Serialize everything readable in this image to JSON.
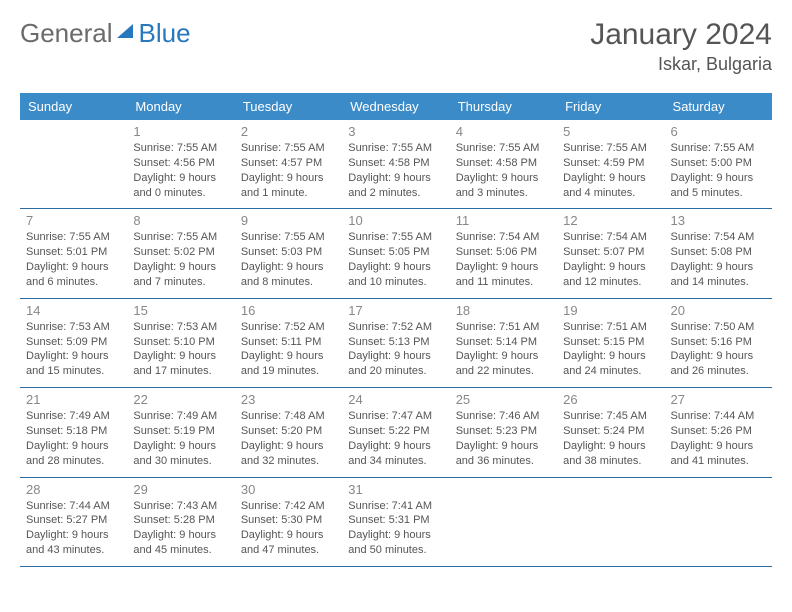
{
  "logo": {
    "text1": "General",
    "text2": "Blue"
  },
  "title": "January 2024",
  "location": "Iskar, Bulgaria",
  "colors": {
    "header_bg": "#3b8bc9",
    "header_text": "#ffffff",
    "border": "#2b6ca3",
    "daynum": "#888888",
    "body_text": "#555555",
    "logo_gray": "#6b6b6b",
    "logo_blue": "#2878bd"
  },
  "weekdays": [
    "Sunday",
    "Monday",
    "Tuesday",
    "Wednesday",
    "Thursday",
    "Friday",
    "Saturday"
  ],
  "weeks": [
    [
      null,
      {
        "n": "1",
        "sr": "7:55 AM",
        "ss": "4:56 PM",
        "dl": "9 hours and 0 minutes."
      },
      {
        "n": "2",
        "sr": "7:55 AM",
        "ss": "4:57 PM",
        "dl": "9 hours and 1 minute."
      },
      {
        "n": "3",
        "sr": "7:55 AM",
        "ss": "4:58 PM",
        "dl": "9 hours and 2 minutes."
      },
      {
        "n": "4",
        "sr": "7:55 AM",
        "ss": "4:58 PM",
        "dl": "9 hours and 3 minutes."
      },
      {
        "n": "5",
        "sr": "7:55 AM",
        "ss": "4:59 PM",
        "dl": "9 hours and 4 minutes."
      },
      {
        "n": "6",
        "sr": "7:55 AM",
        "ss": "5:00 PM",
        "dl": "9 hours and 5 minutes."
      }
    ],
    [
      {
        "n": "7",
        "sr": "7:55 AM",
        "ss": "5:01 PM",
        "dl": "9 hours and 6 minutes."
      },
      {
        "n": "8",
        "sr": "7:55 AM",
        "ss": "5:02 PM",
        "dl": "9 hours and 7 minutes."
      },
      {
        "n": "9",
        "sr": "7:55 AM",
        "ss": "5:03 PM",
        "dl": "9 hours and 8 minutes."
      },
      {
        "n": "10",
        "sr": "7:55 AM",
        "ss": "5:05 PM",
        "dl": "9 hours and 10 minutes."
      },
      {
        "n": "11",
        "sr": "7:54 AM",
        "ss": "5:06 PM",
        "dl": "9 hours and 11 minutes."
      },
      {
        "n": "12",
        "sr": "7:54 AM",
        "ss": "5:07 PM",
        "dl": "9 hours and 12 minutes."
      },
      {
        "n": "13",
        "sr": "7:54 AM",
        "ss": "5:08 PM",
        "dl": "9 hours and 14 minutes."
      }
    ],
    [
      {
        "n": "14",
        "sr": "7:53 AM",
        "ss": "5:09 PM",
        "dl": "9 hours and 15 minutes."
      },
      {
        "n": "15",
        "sr": "7:53 AM",
        "ss": "5:10 PM",
        "dl": "9 hours and 17 minutes."
      },
      {
        "n": "16",
        "sr": "7:52 AM",
        "ss": "5:11 PM",
        "dl": "9 hours and 19 minutes."
      },
      {
        "n": "17",
        "sr": "7:52 AM",
        "ss": "5:13 PM",
        "dl": "9 hours and 20 minutes."
      },
      {
        "n": "18",
        "sr": "7:51 AM",
        "ss": "5:14 PM",
        "dl": "9 hours and 22 minutes."
      },
      {
        "n": "19",
        "sr": "7:51 AM",
        "ss": "5:15 PM",
        "dl": "9 hours and 24 minutes."
      },
      {
        "n": "20",
        "sr": "7:50 AM",
        "ss": "5:16 PM",
        "dl": "9 hours and 26 minutes."
      }
    ],
    [
      {
        "n": "21",
        "sr": "7:49 AM",
        "ss": "5:18 PM",
        "dl": "9 hours and 28 minutes."
      },
      {
        "n": "22",
        "sr": "7:49 AM",
        "ss": "5:19 PM",
        "dl": "9 hours and 30 minutes."
      },
      {
        "n": "23",
        "sr": "7:48 AM",
        "ss": "5:20 PM",
        "dl": "9 hours and 32 minutes."
      },
      {
        "n": "24",
        "sr": "7:47 AM",
        "ss": "5:22 PM",
        "dl": "9 hours and 34 minutes."
      },
      {
        "n": "25",
        "sr": "7:46 AM",
        "ss": "5:23 PM",
        "dl": "9 hours and 36 minutes."
      },
      {
        "n": "26",
        "sr": "7:45 AM",
        "ss": "5:24 PM",
        "dl": "9 hours and 38 minutes."
      },
      {
        "n": "27",
        "sr": "7:44 AM",
        "ss": "5:26 PM",
        "dl": "9 hours and 41 minutes."
      }
    ],
    [
      {
        "n": "28",
        "sr": "7:44 AM",
        "ss": "5:27 PM",
        "dl": "9 hours and 43 minutes."
      },
      {
        "n": "29",
        "sr": "7:43 AM",
        "ss": "5:28 PM",
        "dl": "9 hours and 45 minutes."
      },
      {
        "n": "30",
        "sr": "7:42 AM",
        "ss": "5:30 PM",
        "dl": "9 hours and 47 minutes."
      },
      {
        "n": "31",
        "sr": "7:41 AM",
        "ss": "5:31 PM",
        "dl": "9 hours and 50 minutes."
      },
      null,
      null,
      null
    ]
  ]
}
